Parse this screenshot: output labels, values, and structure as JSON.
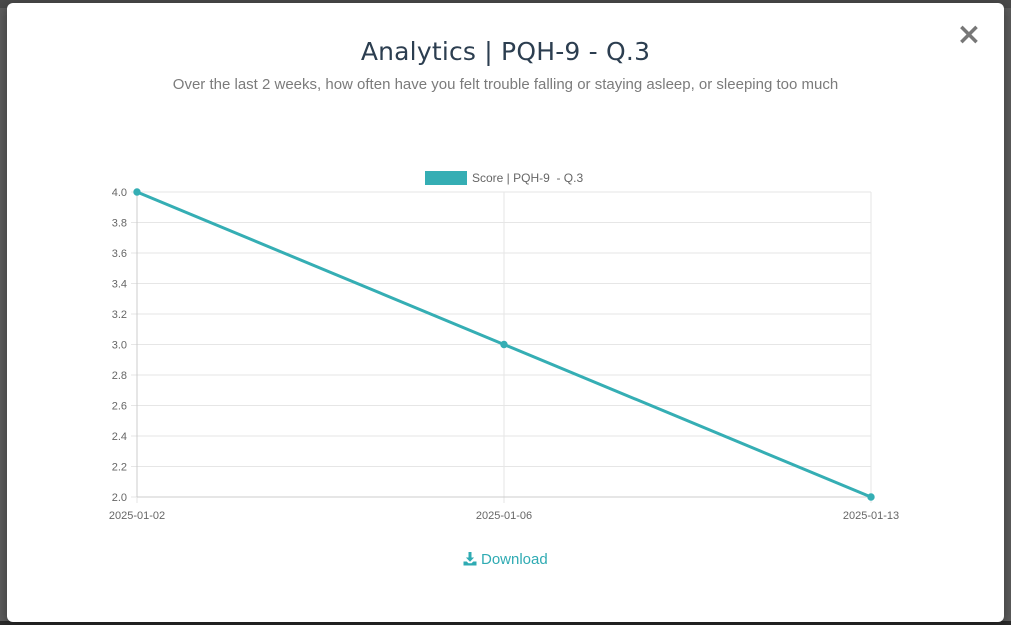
{
  "modal": {
    "title": "Analytics | PQH-9 - Q.3",
    "subtitle": "Over the last 2 weeks, how often have you felt trouble falling or staying asleep, or sleeping too much",
    "close_label": "×",
    "download_label": "Download"
  },
  "colors": {
    "series": "#35aeb4",
    "accent": "#2fabb3",
    "grid": "#e6e6e6",
    "tick_text": "#666666"
  },
  "icons": {
    "close": "close-icon",
    "download": "download-icon"
  },
  "chart_data": {
    "type": "line",
    "x": [
      "2025-01-02",
      "2025-01-06",
      "2025-01-13"
    ],
    "series": [
      {
        "name": "Score | PQH-9  - Q.3",
        "values": [
          4.0,
          3.0,
          2.0
        ]
      }
    ],
    "yticks": [
      "4.0",
      "3.8",
      "3.6",
      "3.4",
      "3.2",
      "3.0",
      "2.8",
      "2.6",
      "2.4",
      "2.2",
      "2.0"
    ],
    "ylim": [
      2.0,
      4.0
    ],
    "grid": true,
    "legend": "top-center"
  }
}
